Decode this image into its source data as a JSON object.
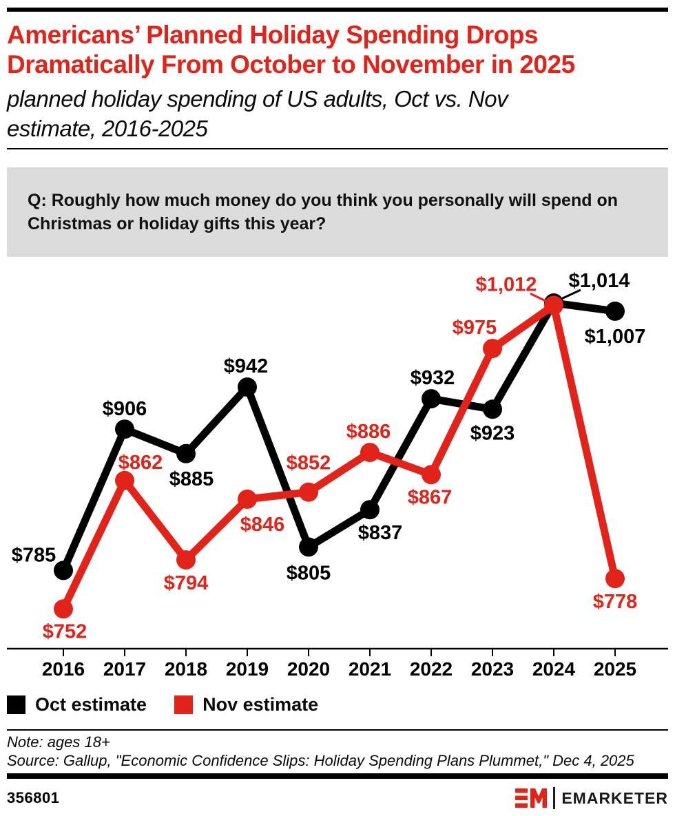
{
  "header": {
    "title_lines": [
      "Americans’ Planned Holiday Spending Drops",
      "Dramatically From October to November in 2025"
    ],
    "subtitle_lines": [
      "planned holiday spending of US adults, Oct vs. Nov",
      "estimate, 2016-2025"
    ]
  },
  "question": {
    "lines": [
      "Q: Roughly how much money do you think you personally will spend on",
      "Christmas or holiday gifts this year?"
    ]
  },
  "chart_data": {
    "type": "line",
    "title": "planned holiday spending of US adults, Oct vs. Nov estimate, 2016-2025",
    "categories": [
      "2016",
      "2017",
      "2018",
      "2019",
      "2020",
      "2021",
      "2022",
      "2023",
      "2024",
      "2025"
    ],
    "series": [
      {
        "name": "Oct estimate",
        "color": "#000000",
        "values": [
          785,
          906,
          885,
          942,
          805,
          837,
          932,
          923,
          1014,
          1007
        ]
      },
      {
        "name": "Nov estimate",
        "color": "#e2231a",
        "values": [
          752,
          862,
          794,
          846,
          852,
          886,
          867,
          975,
          1012,
          778
        ]
      }
    ],
    "value_prefix": "$",
    "xlabel": "",
    "ylabel": "",
    "grid": false,
    "legend_position": "bottom-left",
    "ylim": [
      718,
      1075
    ],
    "layout_hints": {
      "label_offsets": [
        [
          [
            -43,
            -13
          ],
          [
            0,
            -20
          ],
          [
            8,
            46
          ],
          [
            -2,
            -21
          ],
          [
            0,
            47
          ],
          [
            15,
            43
          ],
          [
            2,
            -21
          ],
          [
            0,
            44
          ],
          [
            66,
            -23
          ],
          [
            0,
            46
          ]
        ],
        [
          [
            2,
            42
          ],
          [
            23,
            -17
          ],
          [
            0,
            43
          ],
          [
            22,
            46
          ],
          [
            0,
            -33
          ],
          [
            -2,
            -21
          ],
          [
            -2,
            42
          ],
          [
            -26,
            -21
          ],
          [
            -69,
            -21
          ],
          [
            0,
            43
          ]
        ]
      ],
      "leader_lines": [
        {
          "8": [
            39,
            -19,
            11,
            -6
          ]
        },
        {
          "8": [
            -34,
            -17,
            -7,
            -4
          ]
        }
      ]
    }
  },
  "footnote": {
    "note": "Note: ages 18+",
    "source": "Source: Gallup, \"Economic Confidence Slips: Holiday Spending Plans Plummet,\" Dec 4, 2025"
  },
  "footer": {
    "chart_id": "356801",
    "brand": "EMARKETER"
  },
  "colors": {
    "accent_red": "#e2231a",
    "black": "#000000",
    "question_bg": "#dcdcdc"
  }
}
